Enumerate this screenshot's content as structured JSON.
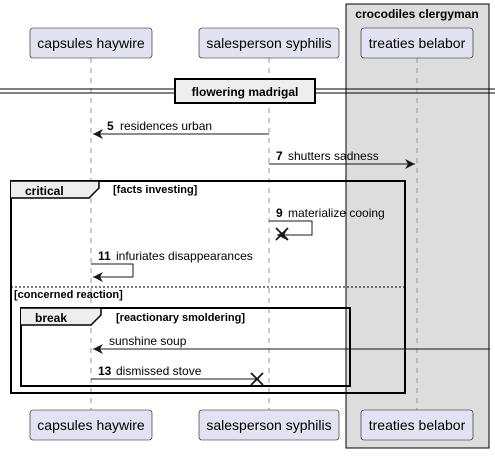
{
  "group": {
    "title": "crocodiles clergyman"
  },
  "participants": [
    {
      "id": "p1",
      "name": "capsules haywire"
    },
    {
      "id": "p2",
      "name": "salesperson syphilis"
    },
    {
      "id": "p3",
      "name": "treaties belabor"
    }
  ],
  "divider": {
    "label": "flowering madrigal"
  },
  "messages": [
    {
      "num": "5",
      "text": "residences urban"
    },
    {
      "num": "7",
      "text": "shutters sadness"
    },
    {
      "num": "9",
      "text": "materialize cooing"
    },
    {
      "num": "11",
      "text": "infuriates disappearances"
    },
    {
      "num": "",
      "text": "sunshine soup"
    },
    {
      "num": "13",
      "text": "dismissed stove"
    }
  ],
  "fragments": {
    "critical": {
      "keyword": "critical",
      "condition": "[facts investing]",
      "else_condition": "[concerned reaction]"
    },
    "break": {
      "keyword": "break",
      "condition": "[reactionary smoldering]"
    }
  },
  "colors": {
    "participant_fill": "#E2E2F0",
    "participant_stroke": "#181818",
    "group_fill": "#DDDDDD",
    "lifeline": "#999999"
  }
}
